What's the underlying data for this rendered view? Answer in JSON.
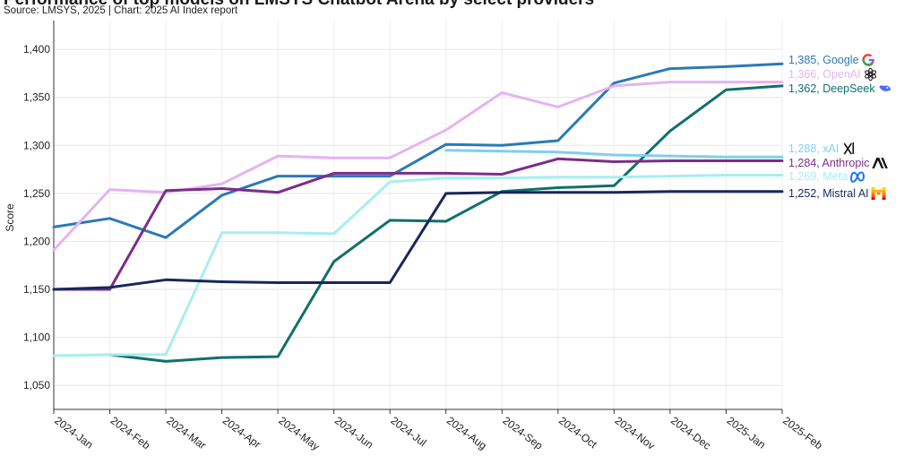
{
  "title": "Performance of top models on LMSYS Chatbot Arena by select providers",
  "subtitle": "Source: LMSYS, 2025 | Chart: 2025 AI Index report",
  "chart_data": {
    "type": "line",
    "title": "Performance of top models on LMSYS Chatbot Arena by select providers",
    "xlabel": "",
    "ylabel": "Score",
    "ylim": [
      1025,
      1430
    ],
    "yticks": [
      1050,
      1100,
      1150,
      1200,
      1250,
      1300,
      1350,
      1400
    ],
    "ytick_labels": [
      "1,050",
      "1,100",
      "1,150",
      "1,200",
      "1,250",
      "1,300",
      "1,350",
      "1,400"
    ],
    "grid": true,
    "categories": [
      "2024-Jan",
      "2024-Feb",
      "2024-Mar",
      "2024-Apr",
      "2024-May",
      "2024-Jun",
      "2024-Jul",
      "2024-Aug",
      "2024-Sep",
      "2024-Oct",
      "2024-Nov",
      "2024-Dec",
      "2025-Jan",
      "2025-Feb"
    ],
    "series": [
      {
        "name": "Google",
        "color": "#2a7ab8",
        "end_label": "1,385, Google",
        "icon": "google-icon",
        "values": [
          1215,
          1224,
          1204,
          1248,
          1268,
          1268,
          1268,
          1301,
          1300,
          1305,
          1365,
          1380,
          1382,
          1385
        ]
      },
      {
        "name": "OpenAI",
        "color": "#e6b3f2",
        "end_label": "1,366, OpenAI",
        "icon": "openai-icon",
        "values": [
          1191,
          1254,
          1251,
          1260,
          1289,
          1287,
          1287,
          1316,
          1355,
          1340,
          1362,
          1366,
          1366,
          1366
        ]
      },
      {
        "name": "DeepSeek",
        "color": "#10706c",
        "end_label": "1,362, DeepSeek",
        "icon": "deepseek-icon",
        "values": [
          null,
          1082,
          1075,
          1079,
          1080,
          1179,
          1222,
          1221,
          1252,
          1256,
          1258,
          1315,
          1358,
          1362
        ]
      },
      {
        "name": "xAI",
        "color": "#7fcfef",
        "end_label": "1,288, xAI",
        "icon": "xai-icon",
        "values": [
          null,
          null,
          null,
          null,
          null,
          null,
          null,
          1295,
          1294,
          1293,
          1290,
          1289,
          1288,
          1288
        ]
      },
      {
        "name": "Anthropic",
        "color": "#7b2d8b",
        "end_label": "1,284, Anthropic",
        "icon": "anthropic-icon",
        "values": [
          1150,
          1150,
          1253,
          1255,
          1251,
          1271,
          1271,
          1271,
          1270,
          1286,
          1283,
          1284,
          1284,
          1284
        ]
      },
      {
        "name": "Meta",
        "color": "#a6eef2",
        "end_label": "1,269, Meta",
        "icon": "meta-icon",
        "values": [
          1081,
          1082,
          1082,
          1209,
          1209,
          1208,
          1262,
          1266,
          1266,
          1267,
          1267,
          1268,
          1269,
          1269
        ]
      },
      {
        "name": "Mistral AI",
        "color": "#18275c",
        "end_label": "1,252, Mistral AI",
        "icon": "mistral-icon",
        "values": [
          1150,
          1152,
          1160,
          1158,
          1157,
          1157,
          1157,
          1250,
          1251,
          1251,
          1251,
          1252,
          1252,
          1252
        ]
      }
    ]
  }
}
